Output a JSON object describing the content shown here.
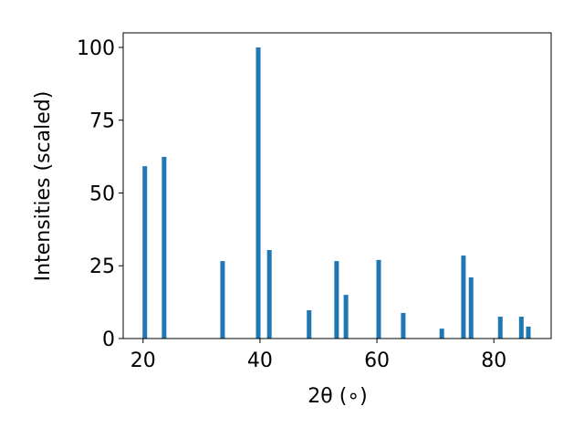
{
  "chart_data": {
    "type": "bar",
    "xlabel": "2θ (∘)",
    "ylabel": "Intensities (scaled)",
    "x": [
      20.3,
      23.6,
      33.6,
      39.7,
      41.6,
      48.4,
      53.1,
      54.7,
      60.3,
      64.5,
      71.1,
      74.8,
      76.1,
      81.1,
      84.7,
      85.9
    ],
    "values": [
      59.2,
      62.4,
      26.6,
      100,
      30.4,
      9.7,
      26.6,
      15.0,
      27.0,
      8.8,
      3.4,
      28.5,
      21.0,
      7.5,
      7.5,
      4.1
    ],
    "color": "#1f77b4",
    "xlim": [
      16.6,
      89.8
    ],
    "xticks": [
      20,
      40,
      60,
      80
    ],
    "ylim": [
      0,
      105
    ],
    "yticks": [
      0,
      25,
      50,
      75,
      100
    ]
  }
}
